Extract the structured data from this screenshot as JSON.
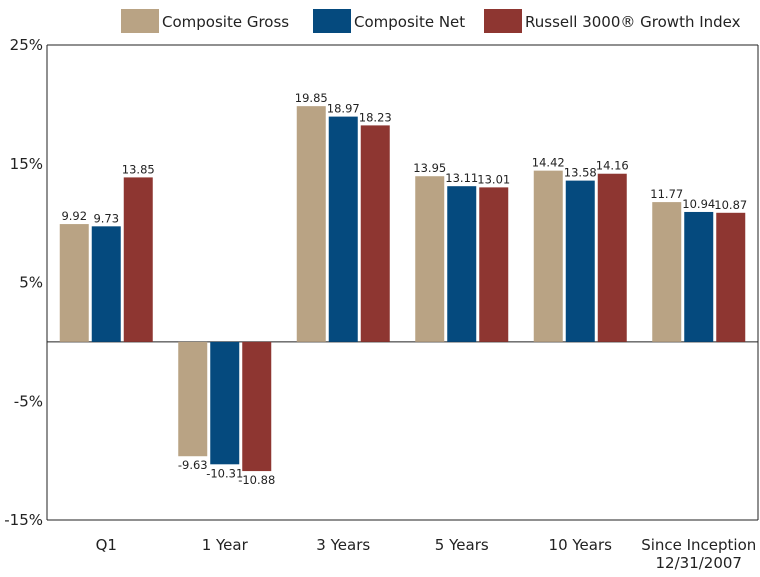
{
  "chart_data": {
    "type": "bar",
    "categories": [
      "Q1",
      "1 Year",
      "3 Years",
      "5 Years",
      "10 Years",
      "Since Inception\n12/31/2007"
    ],
    "series": [
      {
        "name": "Composite Gross",
        "color": "#b9a384",
        "values": [
          9.92,
          -9.63,
          19.85,
          13.95,
          14.42,
          11.77
        ]
      },
      {
        "name": "Composite Net",
        "color": "#054a7e",
        "values": [
          9.73,
          -10.31,
          18.97,
          13.11,
          13.58,
          10.94
        ]
      },
      {
        "name": "Russell 3000® Growth Index",
        "color": "#8e3631",
        "values": [
          13.85,
          -10.88,
          18.23,
          13.01,
          14.16,
          10.87
        ]
      }
    ],
    "yticks": [
      25,
      15,
      5,
      -5,
      -15
    ],
    "ytick_suffix": "%",
    "ylim": [
      -15,
      25
    ],
    "legend_position": "top",
    "grid": false
  }
}
